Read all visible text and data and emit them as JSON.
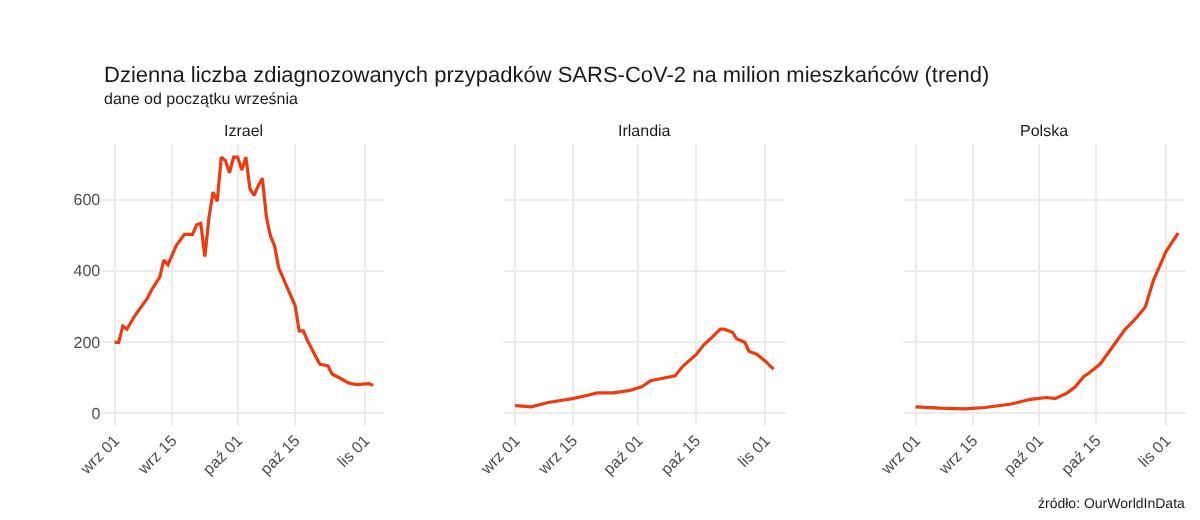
{
  "chart_data": [
    {
      "type": "line",
      "title": "Izrael",
      "annotations": [
        "Dzienna liczba zdiagnozowanych przypadków SARS-CoV-2 na milion mieszkańców (trend)",
        "dane od początku września"
      ],
      "x": [
        "--09-01",
        "--09-02",
        "--09-03",
        "--09-04",
        "--09-06",
        "--09-09",
        "--09-10",
        "--09-12",
        "--09-13",
        "--09-14",
        "--09-16",
        "--09-18",
        "--09-20",
        "--09-21",
        "--09-22",
        "--09-23",
        "--09-24",
        "--09-25",
        "--09-26",
        "--09-27",
        "--09-28",
        "--09-29",
        "--09-30",
        "--10-01",
        "--10-02",
        "--10-03",
        "--10-04",
        "--10-05",
        "--10-06",
        "--10-07",
        "--10-08",
        "--10-09",
        "--10-10",
        "--10-11",
        "--10-12",
        "--10-13",
        "--10-15",
        "--10-16",
        "--10-17",
        "--10-18",
        "--10-20",
        "--10-21",
        "--10-23",
        "--10-24",
        "--10-26",
        "--10-28",
        "--10-30",
        "--11-02",
        "--11-03"
      ],
      "series": [
        {
          "color": "#ee3a0e",
          "values": [
            199,
            199,
            245,
            236,
            275,
            323,
            346,
            382,
            430,
            417,
            470,
            502,
            502,
            529,
            533,
            440,
            550,
            621,
            595,
            719,
            710,
            675,
            719,
            719,
            683,
            719,
            630,
            612,
            639,
            660,
            550,
            497,
            470,
            408,
            382,
            355,
            302,
            231,
            231,
            204,
            160,
            138,
            133,
            110,
            98,
            85,
            80,
            83,
            78
          ]
        }
      ],
      "xlim": [
        "--08-29",
        "--11-06"
      ],
      "xticks": [
        {
          "value": "--09-01",
          "label": "wrz 01"
        },
        {
          "value": "--09-15",
          "label": "wrz 15"
        },
        {
          "value": "--10-01",
          "label": "paź 01"
        },
        {
          "value": "--10-15",
          "label": "paź 15"
        },
        {
          "value": "--11-01",
          "label": "lis 01"
        }
      ],
      "ylim": [
        -36,
        756
      ],
      "yticks": [
        0,
        200,
        400,
        600
      ],
      "grid": true,
      "marker": "none",
      "line_style": "solid"
    },
    {
      "type": "line",
      "title": "Irlandia",
      "x": [
        "--09-01",
        "--09-05",
        "--09-09",
        "--09-15",
        "--09-19",
        "--09-21",
        "--09-25",
        "--09-29",
        "--10-02",
        "--10-04",
        "--10-07",
        "--10-10",
        "--10-12",
        "--10-15",
        "--10-17",
        "--10-19",
        "--10-21",
        "--10-22",
        "--10-24",
        "--10-25",
        "--10-27",
        "--10-28",
        "--10-30",
        "--11-01",
        "--11-03"
      ],
      "series": [
        {
          "color": "#ee3a0e",
          "values": [
            21,
            18,
            30,
            41,
            51,
            57,
            57,
            64,
            75,
            91,
            98,
            105,
            133,
            163,
            192,
            213,
            236,
            236,
            227,
            209,
            199,
            174,
            165,
            146,
            124
          ]
        }
      ],
      "xlim": [
        "--08-29",
        "--11-06"
      ],
      "xticks": [
        {
          "value": "--09-01",
          "label": "wrz 01"
        },
        {
          "value": "--09-15",
          "label": "wrz 15"
        },
        {
          "value": "--10-01",
          "label": "paź 01"
        },
        {
          "value": "--10-15",
          "label": "paź 15"
        },
        {
          "value": "--11-01",
          "label": "lis 01"
        }
      ],
      "ylim": [
        -36,
        756
      ],
      "yticks": [
        0,
        200,
        400,
        600
      ],
      "tick_labels": "x",
      "grid": true,
      "marker": "none",
      "line_style": "solid"
    },
    {
      "type": "line",
      "title": "Polska",
      "annotations": [
        "źródło: OurWorldInData"
      ],
      "x": [
        "--09-01",
        "--09-07",
        "--09-13",
        "--09-18",
        "--09-24",
        "--09-29",
        "--10-03",
        "--10-05",
        "--10-08",
        "--10-10",
        "--10-12",
        "--10-13",
        "--10-16",
        "--10-19",
        "--10-22",
        "--10-25",
        "--10-27",
        "--10-29",
        "--11-01",
        "--11-04"
      ],
      "series": [
        {
          "color": "#ee3a0e",
          "values": [
            18,
            14,
            12,
            16,
            25,
            39,
            44,
            41,
            57,
            75,
            103,
            110,
            138,
            186,
            234,
            270,
            298,
            373,
            453,
            506
          ]
        }
      ],
      "xlim": [
        "--08-29",
        "--11-06"
      ],
      "xticks": [
        {
          "value": "--09-01",
          "label": "wrz 01"
        },
        {
          "value": "--09-15",
          "label": "wrz 15"
        },
        {
          "value": "--10-01",
          "label": "paź 01"
        },
        {
          "value": "--10-15",
          "label": "paź 15"
        },
        {
          "value": "--11-01",
          "label": "lis 01"
        }
      ],
      "ylim": [
        -36,
        756
      ],
      "yticks": [
        0,
        200,
        400,
        600
      ],
      "tick_labels": "x",
      "grid": true,
      "marker": "none",
      "line_style": "solid"
    }
  ]
}
